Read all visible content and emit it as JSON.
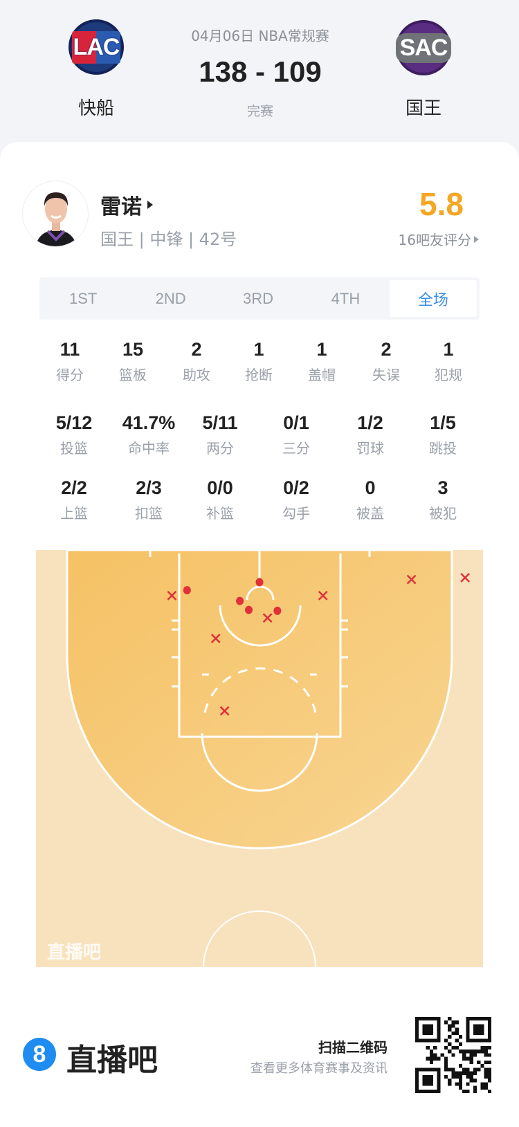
{
  "game": {
    "date_league": "04月06日 NBA常规赛",
    "score": "138 - 109",
    "status": "完赛",
    "home": {
      "abbr": "LAC",
      "name": "快船"
    },
    "away": {
      "abbr": "SAC",
      "name": "国王"
    }
  },
  "player": {
    "name": "雷诺",
    "info": "国王 | 中锋 | 42号",
    "rating": "5.8",
    "rating_label": "16吧友评分",
    "rating_color": "#f5a623"
  },
  "tabs": [
    {
      "label": "1ST"
    },
    {
      "label": "2ND"
    },
    {
      "label": "3RD"
    },
    {
      "label": "4TH"
    },
    {
      "label": "全场",
      "active": true
    }
  ],
  "stats_row1": [
    {
      "v": "11",
      "l": "得分"
    },
    {
      "v": "15",
      "l": "篮板"
    },
    {
      "v": "2",
      "l": "助攻"
    },
    {
      "v": "1",
      "l": "抢断"
    },
    {
      "v": "1",
      "l": "盖帽"
    },
    {
      "v": "2",
      "l": "失误"
    },
    {
      "v": "1",
      "l": "犯规"
    }
  ],
  "stats_row2": [
    {
      "v": "5/12",
      "l": "投篮"
    },
    {
      "v": "41.7%",
      "l": "命中率"
    },
    {
      "v": "5/11",
      "l": "两分"
    },
    {
      "v": "0/1",
      "l": "三分"
    },
    {
      "v": "1/2",
      "l": "罚球"
    },
    {
      "v": "1/5",
      "l": "跳投"
    }
  ],
  "stats_row3": [
    {
      "v": "2/2",
      "l": "上篮"
    },
    {
      "v": "2/3",
      "l": "扣篮"
    },
    {
      "v": "0/0",
      "l": "补篮"
    },
    {
      "v": "0/2",
      "l": "勾手"
    },
    {
      "v": "0",
      "l": "被盖"
    },
    {
      "v": "3",
      "l": "被犯"
    }
  ],
  "shot_chart": {
    "units": "feet (x from hoop center, y from baseline)",
    "made_color": "#e0303a",
    "missed_color": "#e0303a",
    "shots": [
      {
        "x": -8.1,
        "y": 4.5,
        "made": true
      },
      {
        "x": 0,
        "y": 3.6,
        "made": true
      },
      {
        "x": -2.2,
        "y": 5.7,
        "made": true
      },
      {
        "x": -1.2,
        "y": 6.7,
        "made": true
      },
      {
        "x": 2.0,
        "y": 6.8,
        "made": true
      },
      {
        "x": -9.8,
        "y": 5.1,
        "made": false
      },
      {
        "x": 7.1,
        "y": 5.1,
        "made": false
      },
      {
        "x": -4.9,
        "y": 9.9,
        "made": false
      },
      {
        "x": 0.9,
        "y": 7.6,
        "made": false
      },
      {
        "x": -3.9,
        "y": 18.0,
        "made": false
      },
      {
        "x": 17.0,
        "y": 3.3,
        "made": false
      },
      {
        "x": 23.0,
        "y": 3.1,
        "made": false
      }
    ],
    "watermark": "直播吧"
  },
  "footer": {
    "brand": "直播吧",
    "brand_mark": "8",
    "scan": "扫描二维码",
    "desc": "查看更多体育赛事及资讯",
    "brand_color": "#1e8cf0"
  }
}
